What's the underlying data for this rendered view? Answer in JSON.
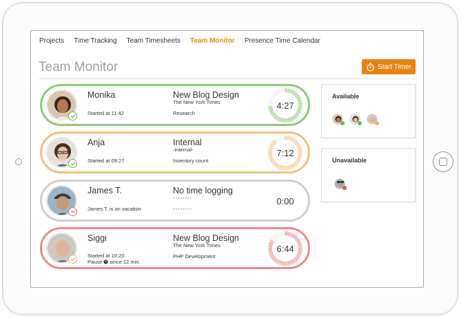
{
  "nav": {
    "items": [
      {
        "label": "Projects",
        "active": false
      },
      {
        "label": "Time Tracking",
        "active": false
      },
      {
        "label": "Team Timesheets",
        "active": false
      },
      {
        "label": "Team Monitor",
        "active": true
      },
      {
        "label": "Presence Time Calendar",
        "active": false
      }
    ]
  },
  "page": {
    "title": "Team Monitor"
  },
  "actions": {
    "start_timer_label": "Start Timer"
  },
  "colors": {
    "accent": "#e68414",
    "available_green": "#8fc978",
    "internal_orange": "#f1c07e",
    "vacation_gray": "#cfcfcf",
    "pause_red": "#ec8a86"
  },
  "team": [
    {
      "name": "Monika",
      "status": "available",
      "started": "Started at 11:42",
      "project": "New Blog Design",
      "client": "The New York Times",
      "task": "Research",
      "time": "4:27",
      "color": "#8fc978",
      "timer_progress": 0.75
    },
    {
      "name": "Anja",
      "status": "available",
      "started": "Started at 09:27",
      "project": "Internal",
      "client": "-internal-",
      "task": "Inventory count",
      "time": "7:12",
      "color": "#f1c07e",
      "timer_progress": 0.9
    },
    {
      "name": "James T.",
      "status": "unavailable",
      "started": "James T. is on vacation",
      "project": "No time logging",
      "client": "--------",
      "task": "--------",
      "time": "0:00",
      "color": "#cfcfcf",
      "timer_progress": 0
    },
    {
      "name": "Siggi",
      "status": "paused",
      "started": "Started at 10:20",
      "pause_text": "Pause",
      "pause_since": "since 12 min.",
      "project": "New Blog Design",
      "client": "The New York Times",
      "task": "PHP Development",
      "time": "6:44",
      "color": "#ec8a86",
      "timer_progress": 0.85
    }
  ],
  "panels": {
    "available_title": "Available",
    "unavailable_title": "Unavailable"
  }
}
